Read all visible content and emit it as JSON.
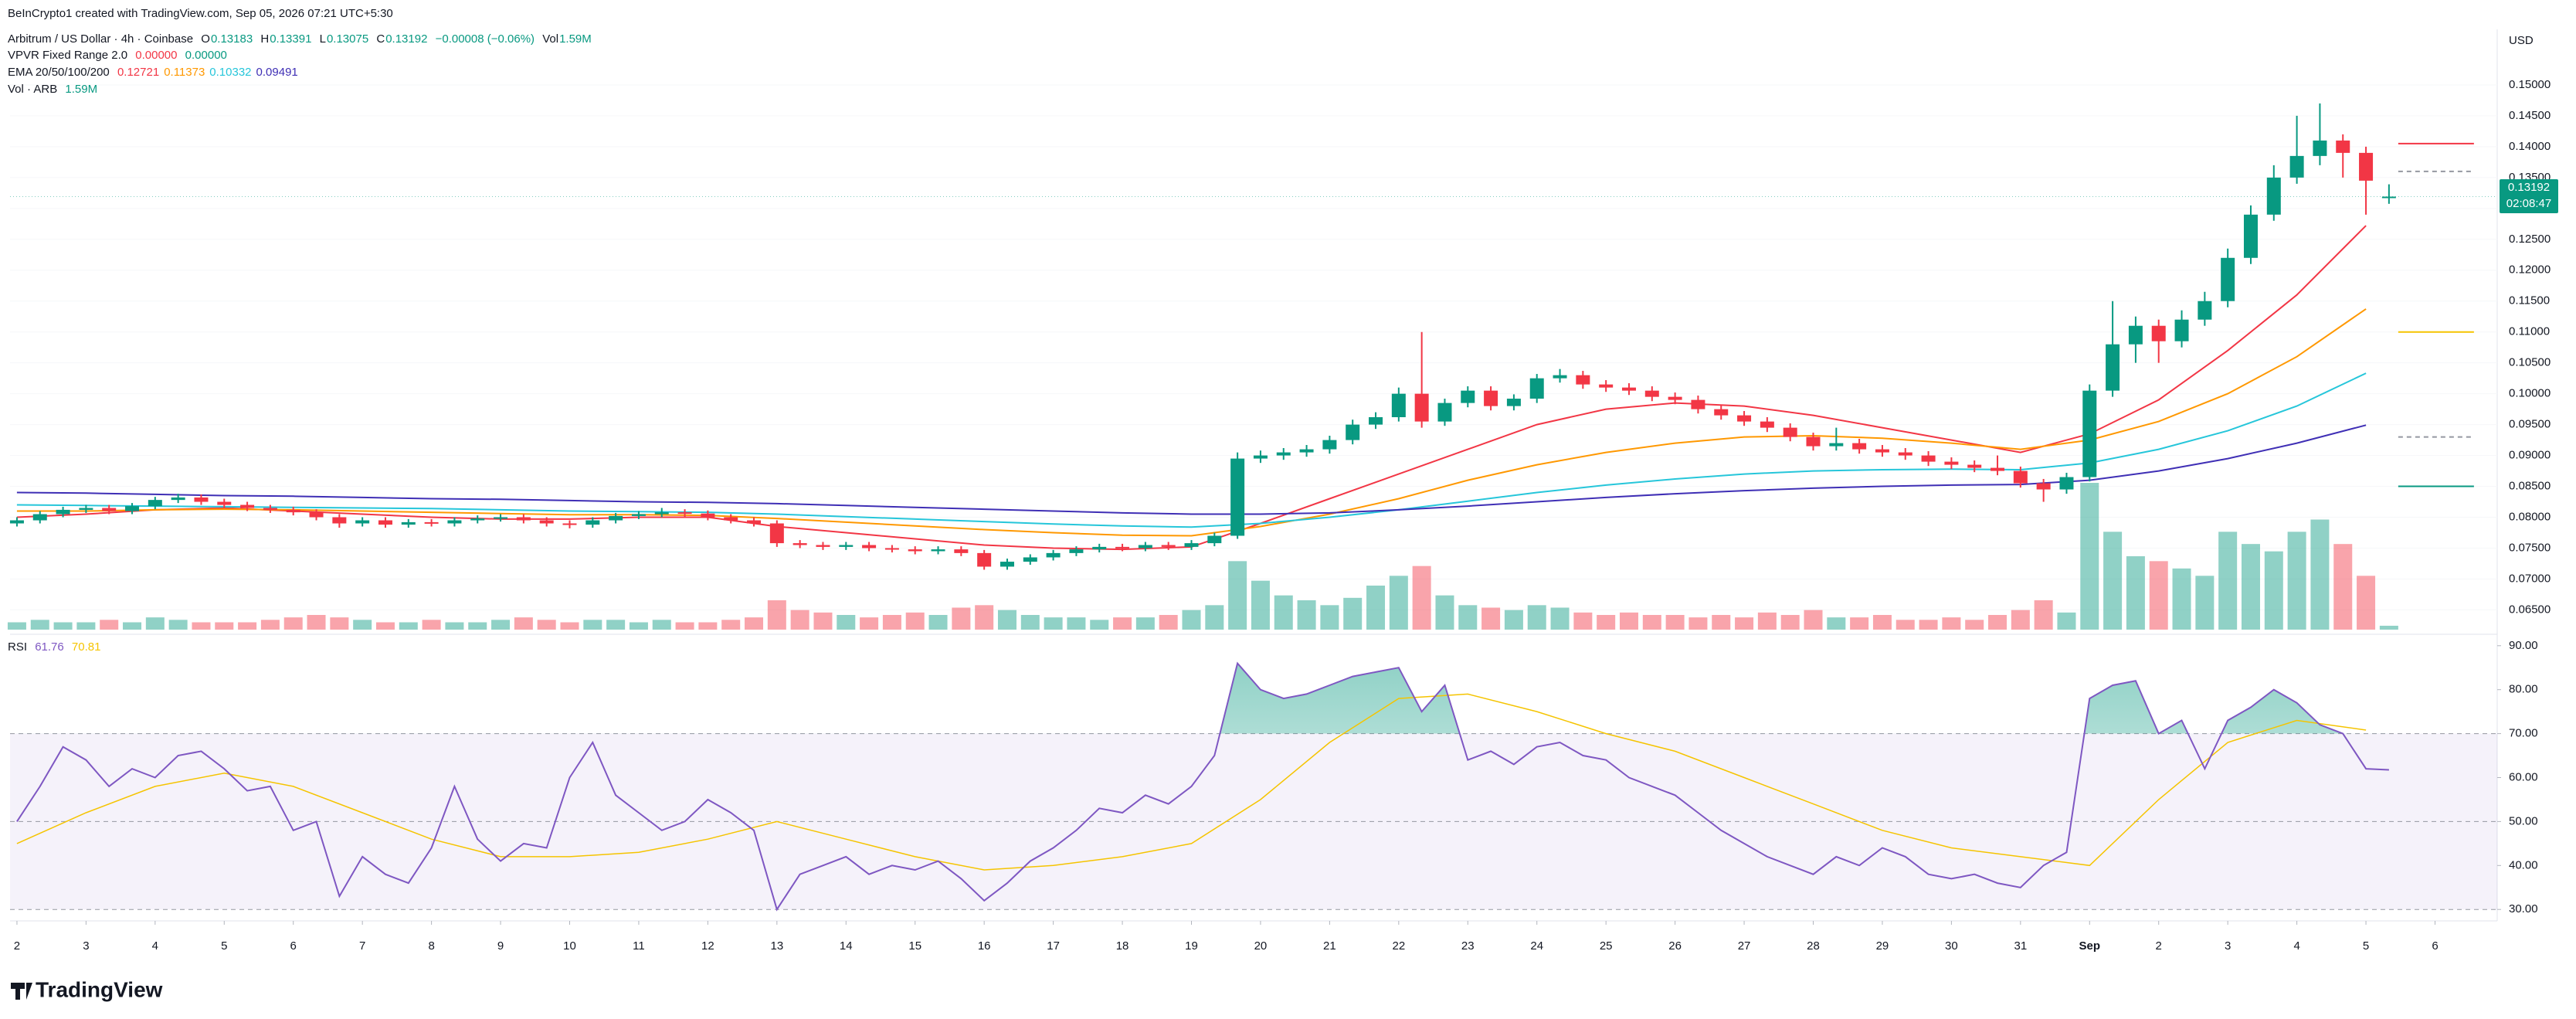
{
  "header": {
    "attribution": "BeInCrypto1 created with TradingView.com, Sep 05, 2026 07:21 UTC+5:30",
    "symbol": "Arbitrum / US Dollar · 4h · Coinbase",
    "ohlc_labels": [
      "O",
      "H",
      "L",
      "C"
    ],
    "change": "−0.00008 (−0.06%)",
    "vol_label": "Vol",
    "vol": "1.59M",
    "vpvr": "VPVR Fixed Range 2.0",
    "vpvr_values": [
      "0.00000",
      "0.00000"
    ],
    "ema_label": "EMA 20/50/100/200",
    "vol_indicator": "Vol · ARB"
  },
  "footer": {
    "logo": "TradingView"
  },
  "chart_data": {
    "type": "candlestick",
    "y_axis_label": "USD",
    "up_color": "#089981",
    "down_color": "#f23645",
    "last_price_countdown": "02:08:47",
    "x": [
      0,
      0.3333,
      0.6667,
      1,
      1.3333,
      1.6667,
      2,
      2.3333,
      2.6667,
      3,
      3.3333,
      3.6667,
      4,
      4.3333,
      4.6667,
      5,
      5.3333,
      5.6667,
      6,
      6.3333,
      6.6667,
      7,
      7.3333,
      7.6667,
      8,
      8.3333,
      8.6667,
      9,
      9.3333,
      9.6667,
      10,
      10.3333,
      10.6667,
      11,
      11.3333,
      11.6667,
      12,
      12.3333,
      12.6667,
      13,
      13.3333,
      13.6667,
      14,
      14.3333,
      14.6667,
      15,
      15.3333,
      15.6667,
      16,
      16.3333,
      16.6667,
      17,
      17.3333,
      17.6667,
      18,
      18.3333,
      18.6667,
      19,
      19.3333,
      19.6667,
      20,
      20.3333,
      20.6667,
      21,
      21.3333,
      21.6667,
      22,
      22.3333,
      22.6667,
      23,
      23.3333,
      23.6667,
      24,
      24.3333,
      24.6667,
      25,
      25.3333,
      25.6667,
      26,
      26.3333,
      26.6667,
      27,
      27.3333,
      27.6667,
      28,
      28.3333,
      28.6667,
      29,
      29.3333,
      29.6667,
      30,
      30.3333,
      30.6667,
      31,
      31.3333,
      31.6667,
      32,
      32.3333,
      32.6667,
      33,
      33.3333,
      33.6667,
      34,
      34.3333
    ],
    "open": [
      0.079,
      0.0795,
      0.0805,
      0.0812,
      0.0815,
      0.081,
      0.0818,
      0.0828,
      0.0832,
      0.0825,
      0.082,
      0.0815,
      0.0812,
      0.0808,
      0.08,
      0.079,
      0.0795,
      0.0788,
      0.0792,
      0.079,
      0.0795,
      0.0798,
      0.08,
      0.0795,
      0.079,
      0.0788,
      0.0795,
      0.0802,
      0.0805,
      0.0808,
      0.0806,
      0.08,
      0.0795,
      0.079,
      0.0758,
      0.0755,
      0.0752,
      0.0755,
      0.075,
      0.0748,
      0.0745,
      0.0748,
      0.0742,
      0.072,
      0.0728,
      0.0735,
      0.0742,
      0.0748,
      0.0752,
      0.075,
      0.0755,
      0.0752,
      0.0758,
      0.077,
      0.0895,
      0.09,
      0.0905,
      0.091,
      0.0925,
      0.095,
      0.0962,
      0.1,
      0.0955,
      0.0985,
      0.1005,
      0.098,
      0.0992,
      0.1025,
      0.103,
      0.1015,
      0.101,
      0.1005,
      0.0995,
      0.099,
      0.0975,
      0.0965,
      0.0955,
      0.0945,
      0.093,
      0.0915,
      0.092,
      0.091,
      0.0905,
      0.09,
      0.089,
      0.0885,
      0.088,
      0.0875,
      0.0855,
      0.0845,
      0.0865,
      0.1005,
      0.108,
      0.111,
      0.1085,
      0.112,
      0.115,
      0.122,
      0.129,
      0.135,
      0.1385,
      0.141,
      0.139,
      0.13183
    ],
    "high": [
      0.08,
      0.081,
      0.0817,
      0.082,
      0.082,
      0.0823,
      0.0833,
      0.0838,
      0.0837,
      0.083,
      0.0825,
      0.082,
      0.0817,
      0.0813,
      0.0805,
      0.08,
      0.08,
      0.0797,
      0.0797,
      0.08,
      0.0803,
      0.0805,
      0.0805,
      0.08,
      0.0795,
      0.08,
      0.0807,
      0.081,
      0.0815,
      0.0813,
      0.0811,
      0.0805,
      0.08,
      0.0795,
      0.0763,
      0.076,
      0.076,
      0.076,
      0.0755,
      0.0753,
      0.0753,
      0.0753,
      0.0747,
      0.0733,
      0.074,
      0.0747,
      0.0753,
      0.0757,
      0.0757,
      0.076,
      0.076,
      0.0763,
      0.0775,
      0.0905,
      0.0908,
      0.0912,
      0.0917,
      0.0932,
      0.0958,
      0.097,
      0.101,
      0.11,
      0.0992,
      0.1012,
      0.1012,
      0.0999,
      0.1032,
      0.104,
      0.1037,
      0.1022,
      0.1017,
      0.1012,
      0.1002,
      0.0997,
      0.0982,
      0.0972,
      0.0962,
      0.0952,
      0.0937,
      0.0945,
      0.0927,
      0.0917,
      0.0912,
      0.0907,
      0.0897,
      0.0892,
      0.09,
      0.0882,
      0.0862,
      0.0872,
      0.1015,
      0.115,
      0.1125,
      0.112,
      0.1135,
      0.1165,
      0.1235,
      0.1305,
      0.137,
      0.145,
      0.147,
      0.142,
      0.14,
      0.13391
    ],
    "low": [
      0.0785,
      0.079,
      0.08,
      0.0807,
      0.0805,
      0.0805,
      0.0813,
      0.0823,
      0.082,
      0.0815,
      0.081,
      0.0807,
      0.0803,
      0.0795,
      0.0783,
      0.0785,
      0.0783,
      0.0783,
      0.0785,
      0.0785,
      0.079,
      0.0793,
      0.079,
      0.0785,
      0.0782,
      0.0783,
      0.079,
      0.0797,
      0.08,
      0.0801,
      0.0795,
      0.079,
      0.0785,
      0.0752,
      0.075,
      0.0747,
      0.0747,
      0.0745,
      0.0743,
      0.074,
      0.074,
      0.0737,
      0.0715,
      0.0715,
      0.0723,
      0.073,
      0.0737,
      0.0743,
      0.0745,
      0.0745,
      0.0747,
      0.0747,
      0.0753,
      0.0765,
      0.0888,
      0.0893,
      0.0898,
      0.0903,
      0.0918,
      0.0943,
      0.0955,
      0.0945,
      0.0948,
      0.0978,
      0.0973,
      0.0973,
      0.0985,
      0.1018,
      0.1008,
      0.1003,
      0.0998,
      0.0988,
      0.0983,
      0.0968,
      0.0958,
      0.0948,
      0.0938,
      0.0923,
      0.0908,
      0.0908,
      0.0903,
      0.0898,
      0.0893,
      0.0883,
      0.0878,
      0.0873,
      0.0868,
      0.0848,
      0.0825,
      0.0838,
      0.0858,
      0.0995,
      0.105,
      0.105,
      0.1075,
      0.111,
      0.114,
      0.121,
      0.128,
      0.134,
      0.137,
      0.135,
      0.129,
      0.13075
    ],
    "close": [
      0.0795,
      0.0805,
      0.0812,
      0.0815,
      0.081,
      0.0818,
      0.0828,
      0.0832,
      0.0825,
      0.082,
      0.0815,
      0.0812,
      0.0808,
      0.08,
      0.079,
      0.0795,
      0.0788,
      0.0792,
      0.079,
      0.0795,
      0.0798,
      0.08,
      0.0795,
      0.079,
      0.0788,
      0.0795,
      0.0802,
      0.0805,
      0.0808,
      0.0806,
      0.08,
      0.0795,
      0.079,
      0.0758,
      0.0755,
      0.0752,
      0.0755,
      0.075,
      0.0748,
      0.0745,
      0.0748,
      0.0742,
      0.072,
      0.0728,
      0.0735,
      0.0742,
      0.0748,
      0.0752,
      0.075,
      0.0755,
      0.0752,
      0.0758,
      0.077,
      0.0895,
      0.09,
      0.0905,
      0.091,
      0.0925,
      0.095,
      0.0962,
      0.1,
      0.0955,
      0.0985,
      0.1005,
      0.098,
      0.0992,
      0.1025,
      0.103,
      0.1015,
      0.101,
      0.1005,
      0.0995,
      0.099,
      0.0975,
      0.0965,
      0.0955,
      0.0945,
      0.093,
      0.0915,
      0.092,
      0.091,
      0.0905,
      0.09,
      0.089,
      0.0885,
      0.088,
      0.0875,
      0.0855,
      0.0845,
      0.0865,
      0.1005,
      0.108,
      0.111,
      0.1085,
      0.112,
      0.115,
      0.122,
      0.129,
      0.135,
      0.1385,
      0.141,
      0.139,
      0.1345,
      0.13192
    ],
    "volume": [
      3,
      4,
      3,
      3,
      4,
      3,
      5,
      4,
      3,
      3,
      3,
      4,
      5,
      6,
      5,
      4,
      3,
      3,
      4,
      3,
      3,
      4,
      5,
      4,
      3,
      4,
      4,
      3,
      4,
      3,
      3,
      4,
      5,
      12,
      8,
      7,
      6,
      5,
      6,
      7,
      6,
      9,
      10,
      8,
      6,
      5,
      5,
      4,
      5,
      5,
      6,
      8,
      10,
      28,
      20,
      14,
      12,
      10,
      13,
      18,
      22,
      26,
      14,
      10,
      9,
      8,
      10,
      9,
      7,
      6,
      7,
      6,
      6,
      5,
      6,
      5,
      7,
      6,
      8,
      5,
      5,
      6,
      4,
      4,
      5,
      4,
      6,
      8,
      12,
      7,
      60,
      40,
      30,
      28,
      25,
      22,
      40,
      35,
      32,
      40,
      45,
      35,
      22,
      1.59
    ],
    "xlim": [
      -0.1,
      35.9
    ],
    "xticks": [
      {
        "value": 0,
        "label": "2"
      },
      {
        "value": 1,
        "label": "3"
      },
      {
        "value": 2,
        "label": "4"
      },
      {
        "value": 3,
        "label": "5"
      },
      {
        "value": 4,
        "label": "6"
      },
      {
        "value": 5,
        "label": "7"
      },
      {
        "value": 6,
        "label": "8"
      },
      {
        "value": 7,
        "label": "9"
      },
      {
        "value": 8,
        "label": "10"
      },
      {
        "value": 9,
        "label": "11"
      },
      {
        "value": 10,
        "label": "12"
      },
      {
        "value": 11,
        "label": "13"
      },
      {
        "value": 12,
        "label": "14"
      },
      {
        "value": 13,
        "label": "15"
      },
      {
        "value": 14,
        "label": "16"
      },
      {
        "value": 15,
        "label": "17"
      },
      {
        "value": 16,
        "label": "18"
      },
      {
        "value": 17,
        "label": "19"
      },
      {
        "value": 18,
        "label": "20"
      },
      {
        "value": 19,
        "label": "21"
      },
      {
        "value": 20,
        "label": "22"
      },
      {
        "value": 21,
        "label": "23"
      },
      {
        "value": 22,
        "label": "24"
      },
      {
        "value": 23,
        "label": "25"
      },
      {
        "value": 24,
        "label": "26"
      },
      {
        "value": 25,
        "label": "27"
      },
      {
        "value": 26,
        "label": "28"
      },
      {
        "value": 27,
        "label": "29"
      },
      {
        "value": 28,
        "label": "30"
      },
      {
        "value": 29,
        "label": "31"
      },
      {
        "value": 30,
        "label": "Sep"
      },
      {
        "value": 31,
        "label": "2"
      },
      {
        "value": 32,
        "label": "3"
      },
      {
        "value": 33,
        "label": "4"
      },
      {
        "value": 34,
        "label": "5"
      },
      {
        "value": 35,
        "label": "6"
      }
    ],
    "ylim": [
      0.0613,
      0.159
    ],
    "yticks": [
      {
        "value": 0.065,
        "label": "0.06500"
      },
      {
        "value": 0.07,
        "label": "0.07000"
      },
      {
        "value": 0.075,
        "label": "0.07500"
      },
      {
        "value": 0.08,
        "label": "0.08000"
      },
      {
        "value": 0.085,
        "label": "0.08500"
      },
      {
        "value": 0.09,
        "label": "0.09000"
      },
      {
        "value": 0.095,
        "label": "0.09500"
      },
      {
        "value": 0.1,
        "label": "0.10000"
      },
      {
        "value": 0.105,
        "label": "0.10500"
      },
      {
        "value": 0.11,
        "label": "0.11000"
      },
      {
        "value": 0.115,
        "label": "0.11500"
      },
      {
        "value": 0.12,
        "label": "0.12000"
      },
      {
        "value": 0.125,
        "label": "0.12500"
      },
      {
        "value": 0.13,
        "label": "0.13000"
      },
      {
        "value": 0.135,
        "label": "0.13500"
      },
      {
        "value": 0.14,
        "label": "0.14000"
      },
      {
        "value": 0.145,
        "label": "0.14500"
      },
      {
        "value": 0.15,
        "label": "0.15000"
      }
    ],
    "lines": {
      "x": [
        0,
        1,
        2,
        3,
        4,
        5,
        6,
        7,
        8,
        9,
        10,
        11,
        12,
        13,
        14,
        15,
        16,
        17,
        18,
        19,
        20,
        21,
        22,
        23,
        24,
        25,
        26,
        27,
        28,
        29,
        30,
        31,
        32,
        33,
        34
      ],
      "series": [
        {
          "color": "#f23645",
          "values": [
            0.08,
            0.0805,
            0.0812,
            0.0815,
            0.081,
            0.0805,
            0.08,
            0.0797,
            0.0797,
            0.08,
            0.08,
            0.0785,
            0.0775,
            0.0765,
            0.0755,
            0.075,
            0.0748,
            0.0752,
            0.079,
            0.083,
            0.087,
            0.091,
            0.095,
            0.0975,
            0.0985,
            0.098,
            0.0965,
            0.0945,
            0.0925,
            0.0905,
            0.0935,
            0.099,
            0.107,
            0.116,
            0.12721
          ]
        },
        {
          "color": "#ff9800",
          "values": [
            0.081,
            0.081,
            0.0812,
            0.0813,
            0.0812,
            0.081,
            0.0808,
            0.0806,
            0.0804,
            0.0804,
            0.0803,
            0.0798,
            0.0792,
            0.0786,
            0.078,
            0.0775,
            0.0771,
            0.077,
            0.0785,
            0.0805,
            0.083,
            0.086,
            0.0885,
            0.0905,
            0.092,
            0.093,
            0.0932,
            0.0928,
            0.092,
            0.091,
            0.0925,
            0.0955,
            0.1,
            0.106,
            0.11373
          ]
        },
        {
          "color": "#26c6da",
          "values": [
            0.082,
            0.0819,
            0.0818,
            0.0817,
            0.0816,
            0.0815,
            0.0814,
            0.0812,
            0.081,
            0.0809,
            0.0808,
            0.0805,
            0.0801,
            0.0797,
            0.0793,
            0.0789,
            0.0786,
            0.0784,
            0.079,
            0.08,
            0.0812,
            0.0826,
            0.084,
            0.0852,
            0.0862,
            0.087,
            0.0875,
            0.0877,
            0.0878,
            0.0877,
            0.0888,
            0.091,
            0.094,
            0.098,
            0.10332
          ]
        },
        {
          "color": "#3f2fb5",
          "values": [
            0.084,
            0.0839,
            0.0837,
            0.0835,
            0.0834,
            0.0832,
            0.083,
            0.0829,
            0.0827,
            0.0825,
            0.0824,
            0.0822,
            0.0819,
            0.0816,
            0.0813,
            0.081,
            0.0807,
            0.0805,
            0.0805,
            0.0807,
            0.0812,
            0.0818,
            0.0825,
            0.0832,
            0.0838,
            0.0843,
            0.0847,
            0.085,
            0.0852,
            0.0853,
            0.086,
            0.0875,
            0.0895,
            0.092,
            0.09491
          ]
        }
      ]
    },
    "levels": [
      {
        "value": 0.1405,
        "color": "#f23645",
        "dash": false
      },
      {
        "value": 0.136,
        "color": "#9598a1",
        "dash": true
      },
      {
        "value": 0.11,
        "color": "#f5c400",
        "dash": false
      },
      {
        "value": 0.093,
        "color": "#9598a1",
        "dash": true
      },
      {
        "value": 0.085,
        "color": "#089981",
        "dash": false
      }
    ],
    "rsi": {
      "title": "RSI",
      "color": "#7e57c2",
      "ma_color": "#f5c400",
      "band": [
        30,
        70
      ],
      "midline": 50,
      "values": [
        50,
        58,
        67,
        64,
        58,
        62,
        60,
        65,
        66,
        62,
        57,
        58,
        48,
        50,
        33,
        42,
        38,
        36,
        44,
        58,
        46,
        41,
        45,
        44,
        60,
        68,
        56,
        52,
        48,
        50,
        55,
        52,
        48,
        30,
        38,
        40,
        42,
        38,
        40,
        39,
        41,
        37,
        32,
        36,
        41,
        44,
        48,
        53,
        52,
        56,
        54,
        58,
        65,
        86,
        80,
        78,
        79,
        81,
        83,
        84,
        85,
        75,
        81,
        64,
        66,
        63,
        67,
        68,
        65,
        64,
        60,
        58,
        56,
        52,
        48,
        45,
        42,
        40,
        38,
        42,
        40,
        44,
        42,
        38,
        37,
        38,
        36,
        35,
        40,
        43,
        78,
        81,
        82,
        70,
        73,
        62,
        73,
        76,
        80,
        77,
        72,
        70,
        62,
        61.76
      ],
      "ma_values": [
        45,
        52,
        58,
        61,
        58,
        52,
        46,
        42,
        42,
        43,
        46,
        50,
        46,
        42,
        39,
        40,
        42,
        45,
        55,
        68,
        78,
        79,
        75,
        70,
        66,
        60,
        54,
        48,
        44,
        42,
        40,
        55,
        68,
        73,
        70.81
      ],
      "ylim": [
        27.4,
        92.6
      ],
      "yticks": [
        {
          "value": 30,
          "label": "30.00"
        },
        {
          "value": 40,
          "label": "40.00"
        },
        {
          "value": 50,
          "label": "50.00"
        },
        {
          "value": 60,
          "label": "60.00"
        },
        {
          "value": 70,
          "label": "70.00"
        },
        {
          "value": 80,
          "label": "80.00"
        },
        {
          "value": 90,
          "label": "90.00"
        }
      ]
    }
  }
}
